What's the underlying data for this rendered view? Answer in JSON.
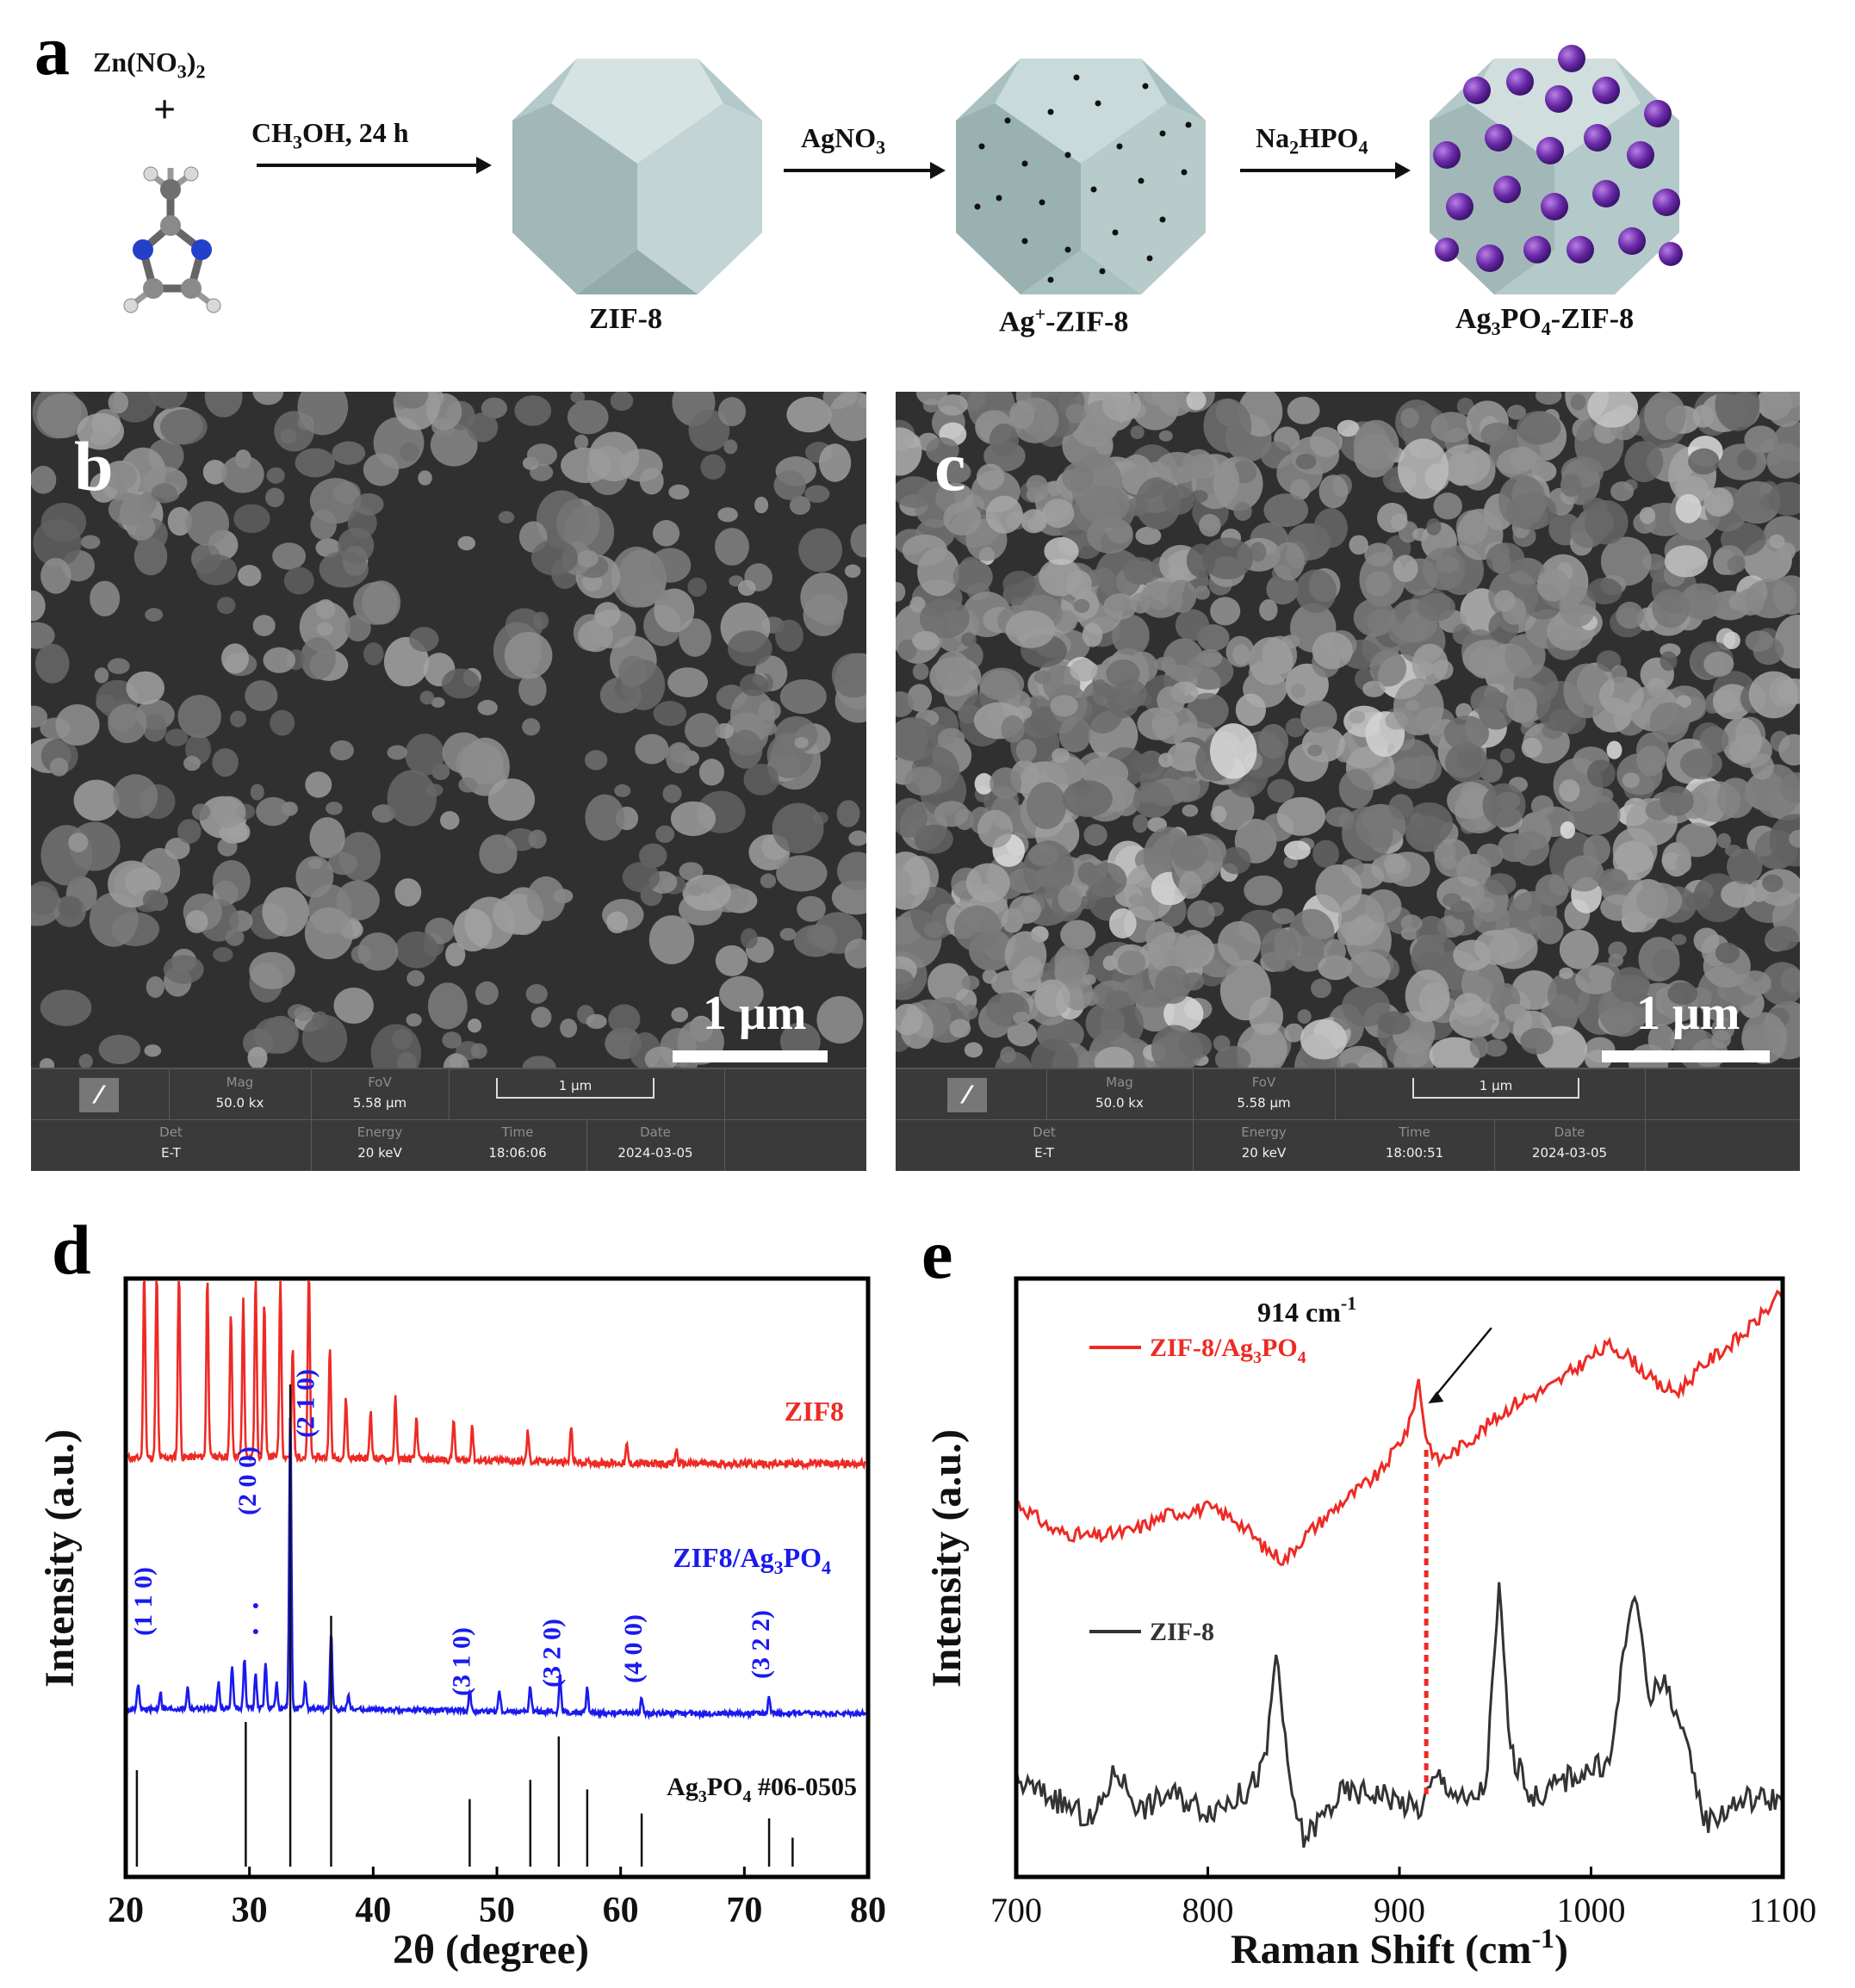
{
  "panel_a": {
    "label": "a",
    "reactant_1": "Zn(NO3)2",
    "plus": "+",
    "step1": "CH3OH, 24 h",
    "step2": "AgNO3",
    "step3": "Na2HPO4",
    "product1": "ZIF-8",
    "product2": "Ag+-ZIF-8",
    "product3": "Ag3PO4-ZIF-8"
  },
  "panel_b": {
    "label": "b",
    "scale_label": "1 μm",
    "info": {
      "mag_h": "Mag",
      "mag_v": "50.0 kx",
      "fov_h": "FoV",
      "fov_v": "5.58 μm",
      "scale": "1 μm",
      "det_h": "Det",
      "det_v": "E-T",
      "energy_h": "Energy",
      "energy_v": "20 keV",
      "time_h": "Time",
      "time_v": "18:06:06",
      "date_h": "Date",
      "date_v": "2024-03-05"
    }
  },
  "panel_c": {
    "label": "c",
    "scale_label": "1 μm",
    "info": {
      "mag_h": "Mag",
      "mag_v": "50.0 kx",
      "fov_h": "FoV",
      "fov_v": "5.58 μm",
      "scale": "1 μm",
      "det_h": "Det",
      "det_v": "E-T",
      "energy_h": "Energy",
      "energy_v": "20 keV",
      "time_h": "Time",
      "time_v": "18:00:51",
      "date_h": "Date",
      "date_v": "2024-03-05"
    }
  },
  "chart_data": [
    {
      "panel": "d",
      "type": "line",
      "xlabel": "2θ (degree)",
      "ylabel": "Intensity (a.u.)",
      "xlim": [
        20,
        80
      ],
      "xticks": [
        20,
        30,
        40,
        50,
        60,
        70,
        80
      ],
      "series": [
        {
          "name": "ZIF8",
          "color": "#ee2a24",
          "peaks": [
            [
              21.5,
              1.6
            ],
            [
              22.5,
              1.6
            ],
            [
              24.3,
              1.6
            ],
            [
              26.6,
              1.5
            ],
            [
              28.5,
              1.2
            ],
            [
              29.5,
              1.3
            ],
            [
              30.5,
              1.5
            ],
            [
              31.2,
              1.3
            ],
            [
              32.5,
              1.5
            ],
            [
              33.5,
              0.9
            ],
            [
              34.8,
              1.6
            ],
            [
              36.5,
              0.9
            ],
            [
              37.8,
              0.5
            ],
            [
              39.8,
              0.4
            ],
            [
              41.8,
              0.5
            ],
            [
              43.5,
              0.35
            ],
            [
              46.5,
              0.35
            ],
            [
              48.0,
              0.3
            ],
            [
              52.5,
              0.25
            ],
            [
              56.0,
              0.3
            ],
            [
              60.5,
              0.15
            ],
            [
              64.5,
              0.12
            ]
          ]
        },
        {
          "name": "ZIF8/Ag3PO4",
          "color": "#1a1aee",
          "peaks": [
            [
              21.0,
              0.3
            ],
            [
              22.8,
              0.2
            ],
            [
              25.0,
              0.25
            ],
            [
              27.5,
              0.3
            ],
            [
              28.6,
              0.5
            ],
            [
              29.6,
              0.6
            ],
            [
              30.5,
              0.4
            ],
            [
              31.3,
              0.55
            ],
            [
              32.2,
              0.3
            ],
            [
              33.3,
              3.5
            ],
            [
              34.5,
              0.3
            ],
            [
              36.6,
              0.9
            ],
            [
              38.0,
              0.2
            ],
            [
              47.8,
              0.25
            ],
            [
              50.2,
              0.25
            ],
            [
              52.7,
              0.3
            ],
            [
              55.1,
              0.45
            ],
            [
              57.3,
              0.3
            ],
            [
              61.7,
              0.2
            ],
            [
              72.0,
              0.2
            ]
          ]
        }
      ],
      "reference": {
        "name": "Ag3PO4 #06-0505",
        "sticks": [
          [
            20.9,
            0.2
          ],
          [
            29.7,
            0.3
          ],
          [
            33.3,
            1.0
          ],
          [
            36.6,
            0.52
          ],
          [
            47.8,
            0.14
          ],
          [
            52.7,
            0.18
          ],
          [
            55.0,
            0.27
          ],
          [
            57.3,
            0.16
          ],
          [
            61.7,
            0.11
          ],
          [
            72.0,
            0.1
          ],
          [
            73.9,
            0.06
          ]
        ]
      },
      "annotations": [
        "(1 1 0)",
        "(2 0 0)",
        "(2 1 0)",
        "(3 1 0)",
        "(3 2 0)",
        "(4 0 0)",
        "(3 2 2)"
      ]
    },
    {
      "panel": "e",
      "type": "line",
      "xlabel": "Raman Shift (cm-1)",
      "ylabel": "Intensity (a.u.)",
      "xlim": [
        700,
        1100
      ],
      "xticks": [
        700,
        800,
        900,
        1000,
        1100
      ],
      "annotation": "914 cm-1",
      "series": [
        {
          "name": "ZIF-8/Ag3PO4",
          "color": "#ee2a24",
          "points": [
            [
              700,
              0.63
            ],
            [
              720,
              0.58
            ],
            [
              740,
              0.57
            ],
            [
              760,
              0.58
            ],
            [
              780,
              0.61
            ],
            [
              800,
              0.62
            ],
            [
              815,
              0.6
            ],
            [
              830,
              0.55
            ],
            [
              840,
              0.53
            ],
            [
              850,
              0.57
            ],
            [
              870,
              0.63
            ],
            [
              890,
              0.68
            ],
            [
              905,
              0.76
            ],
            [
              910,
              0.84
            ],
            [
              914,
              0.74
            ],
            [
              920,
              0.7
            ],
            [
              930,
              0.72
            ],
            [
              945,
              0.76
            ],
            [
              960,
              0.8
            ],
            [
              980,
              0.83
            ],
            [
              1000,
              0.88
            ],
            [
              1010,
              0.9
            ],
            [
              1020,
              0.88
            ],
            [
              1035,
              0.83
            ],
            [
              1045,
              0.82
            ],
            [
              1060,
              0.87
            ],
            [
              1080,
              0.92
            ],
            [
              1100,
              0.99
            ]
          ]
        },
        {
          "name": "ZIF-8",
          "color": "#333333",
          "points": [
            [
              700,
              0.15
            ],
            [
              720,
              0.12
            ],
            [
              740,
              0.08
            ],
            [
              752,
              0.17
            ],
            [
              765,
              0.1
            ],
            [
              780,
              0.13
            ],
            [
              800,
              0.1
            ],
            [
              820,
              0.13
            ],
            [
              830,
              0.18
            ],
            [
              836,
              0.38
            ],
            [
              842,
              0.15
            ],
            [
              850,
              0.05
            ],
            [
              870,
              0.13
            ],
            [
              890,
              0.13
            ],
            [
              910,
              0.1
            ],
            [
              920,
              0.16
            ],
            [
              935,
              0.11
            ],
            [
              945,
              0.14
            ],
            [
              952,
              0.48
            ],
            [
              958,
              0.2
            ],
            [
              970,
              0.12
            ],
            [
              990,
              0.16
            ],
            [
              1010,
              0.18
            ],
            [
              1020,
              0.45
            ],
            [
              1025,
              0.44
            ],
            [
              1030,
              0.3
            ],
            [
              1040,
              0.32
            ],
            [
              1050,
              0.2
            ],
            [
              1060,
              0.08
            ],
            [
              1080,
              0.12
            ],
            [
              1100,
              0.12
            ]
          ]
        }
      ]
    }
  ]
}
